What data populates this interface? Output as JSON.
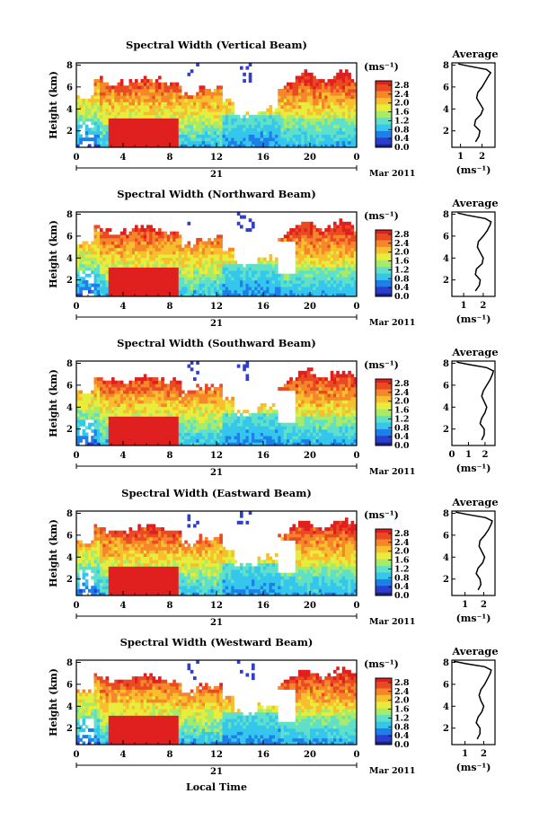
{
  "figure": {
    "x_axis_label": "Local Time",
    "date_label": "Mar 2011",
    "day_label": "21",
    "y_axis_label": "Height (km)",
    "colorbar_unit": "(ms⁻¹)",
    "profile_title": "Average",
    "profile_unit": "(ms⁻¹)"
  },
  "colors": {
    "scale": [
      "#1a237e",
      "#2a3fd0",
      "#1e7fe8",
      "#34c6ec",
      "#5fe0c8",
      "#a6ec6a",
      "#e8ec3c",
      "#f7bf2e",
      "#f5862a",
      "#ea4a22",
      "#e01f1f"
    ]
  },
  "chart_data": [
    {
      "type": "heatmap",
      "title": "Spectral Width (Vertical Beam)",
      "x_ticks": [
        "0",
        "4",
        "8",
        "12",
        "16",
        "20",
        "0"
      ],
      "xlim": [
        0,
        24
      ],
      "y_ticks": [
        "2",
        "4",
        "6",
        "8"
      ],
      "ylim": [
        0.5,
        8.2
      ],
      "colorbar_ticks": [
        "0.0",
        "0.4",
        "0.8",
        "1.2",
        "1.6",
        "2.0",
        "2.4",
        "2.8"
      ],
      "colorbar_range": [
        0.0,
        3.0
      ],
      "profile": {
        "title": "Average",
        "x_ticks": [
          "1",
          "2"
        ],
        "xlim": [
          0.6,
          2.6
        ],
        "x": [
          1.7,
          1.85,
          1.9,
          1.65,
          1.7,
          1.95,
          2.05,
          1.9,
          1.75,
          1.8,
          2.0,
          2.15,
          2.3,
          2.4,
          2.2,
          1.4,
          0.9
        ],
        "y": [
          1.0,
          1.5,
          2.0,
          2.5,
          3.0,
          3.5,
          4.0,
          4.5,
          5.0,
          5.5,
          6.0,
          6.5,
          7.0,
          7.3,
          7.6,
          7.9,
          8.1
        ]
      }
    },
    {
      "type": "heatmap",
      "title": "Spectral Width (Northward Beam)",
      "x_ticks": [
        "0",
        "4",
        "8",
        "12",
        "16",
        "20",
        "0"
      ],
      "xlim": [
        0,
        24
      ],
      "y_ticks": [
        "2",
        "4",
        "6",
        "8"
      ],
      "ylim": [
        0.5,
        8.2
      ],
      "colorbar_ticks": [
        "0.0",
        "0.4",
        "0.8",
        "1.2",
        "1.6",
        "2.0",
        "2.4",
        "2.8"
      ],
      "colorbar_range": [
        0.0,
        3.0
      ],
      "profile": {
        "title": "Average",
        "x_ticks": [
          "1",
          "2"
        ],
        "xlim": [
          0.4,
          2.6
        ],
        "x": [
          1.6,
          1.8,
          1.85,
          1.6,
          1.65,
          1.95,
          2.0,
          1.85,
          1.7,
          1.75,
          2.0,
          2.2,
          2.35,
          2.4,
          2.1,
          1.2,
          0.7
        ],
        "y": [
          1.0,
          1.5,
          2.0,
          2.5,
          3.0,
          3.5,
          4.0,
          4.5,
          5.0,
          5.5,
          6.0,
          6.5,
          7.0,
          7.3,
          7.6,
          7.9,
          8.1
        ]
      }
    },
    {
      "type": "heatmap",
      "title": "Spectral Width (Southward Beam)",
      "x_ticks": [
        "0",
        "4",
        "8",
        "12",
        "16",
        "20",
        "0"
      ],
      "xlim": [
        0,
        24
      ],
      "y_ticks": [
        "2",
        "4",
        "6",
        "8"
      ],
      "ylim": [
        0.5,
        8.2
      ],
      "colorbar_ticks": [
        "0.0",
        "0.4",
        "0.8",
        "1.2",
        "1.6",
        "2.0",
        "2.4",
        "2.8"
      ],
      "colorbar_range": [
        0.0,
        3.0
      ],
      "profile": {
        "title": "Average",
        "x_ticks": [
          "0",
          "1",
          "2"
        ],
        "xlim": [
          0,
          2.6
        ],
        "x": [
          1.8,
          1.95,
          1.95,
          1.7,
          1.8,
          2.0,
          2.1,
          1.95,
          1.8,
          1.9,
          2.1,
          2.3,
          2.45,
          2.5,
          2.1,
          1.0,
          0.3
        ],
        "y": [
          1.0,
          1.5,
          2.0,
          2.5,
          3.0,
          3.5,
          4.0,
          4.5,
          5.0,
          5.5,
          6.0,
          6.5,
          7.0,
          7.3,
          7.6,
          7.9,
          8.1
        ]
      }
    },
    {
      "type": "heatmap",
      "title": "Spectral Width (Eastward Beam)",
      "x_ticks": [
        "0",
        "4",
        "8",
        "12",
        "16",
        "20",
        "0"
      ],
      "xlim": [
        0,
        24
      ],
      "y_ticks": [
        "2",
        "4",
        "6",
        "8"
      ],
      "ylim": [
        0.5,
        8.2
      ],
      "colorbar_ticks": [
        "0.0",
        "0.4",
        "0.8",
        "1.2",
        "1.6",
        "2.0",
        "2.4",
        "2.8"
      ],
      "colorbar_range": [
        0.0,
        3.0
      ],
      "profile": {
        "title": "Average",
        "x_ticks": [
          "1",
          "2"
        ],
        "xlim": [
          0.3,
          2.6
        ],
        "x": [
          1.7,
          1.85,
          1.8,
          1.6,
          1.7,
          1.95,
          2.05,
          1.9,
          1.75,
          1.8,
          2.05,
          2.25,
          2.4,
          2.45,
          2.1,
          1.1,
          0.5
        ],
        "y": [
          1.0,
          1.5,
          2.0,
          2.5,
          3.0,
          3.5,
          4.0,
          4.5,
          5.0,
          5.5,
          6.0,
          6.5,
          7.0,
          7.3,
          7.6,
          7.9,
          8.1
        ]
      }
    },
    {
      "type": "heatmap",
      "title": "Spectral Width (Westward Beam)",
      "x_ticks": [
        "0",
        "4",
        "8",
        "12",
        "16",
        "20",
        "0"
      ],
      "xlim": [
        0,
        24
      ],
      "y_ticks": [
        "2",
        "4",
        "6",
        "8"
      ],
      "ylim": [
        0.5,
        8.2
      ],
      "colorbar_ticks": [
        "0.0",
        "0.4",
        "0.8",
        "1.2",
        "1.6",
        "2.0",
        "2.4",
        "2.8"
      ],
      "colorbar_range": [
        0.0,
        3.0
      ],
      "profile": {
        "title": "Average",
        "x_ticks": [
          "1",
          "2"
        ],
        "xlim": [
          0.3,
          2.6
        ],
        "x": [
          1.65,
          1.8,
          1.8,
          1.6,
          1.7,
          1.9,
          2.0,
          1.85,
          1.75,
          1.85,
          2.05,
          2.2,
          2.35,
          2.4,
          2.05,
          1.0,
          0.4
        ],
        "y": [
          1.0,
          1.5,
          2.0,
          2.5,
          3.0,
          3.5,
          4.0,
          4.5,
          5.0,
          5.5,
          6.0,
          6.5,
          7.0,
          7.3,
          7.6,
          7.9,
          8.1
        ]
      }
    }
  ]
}
